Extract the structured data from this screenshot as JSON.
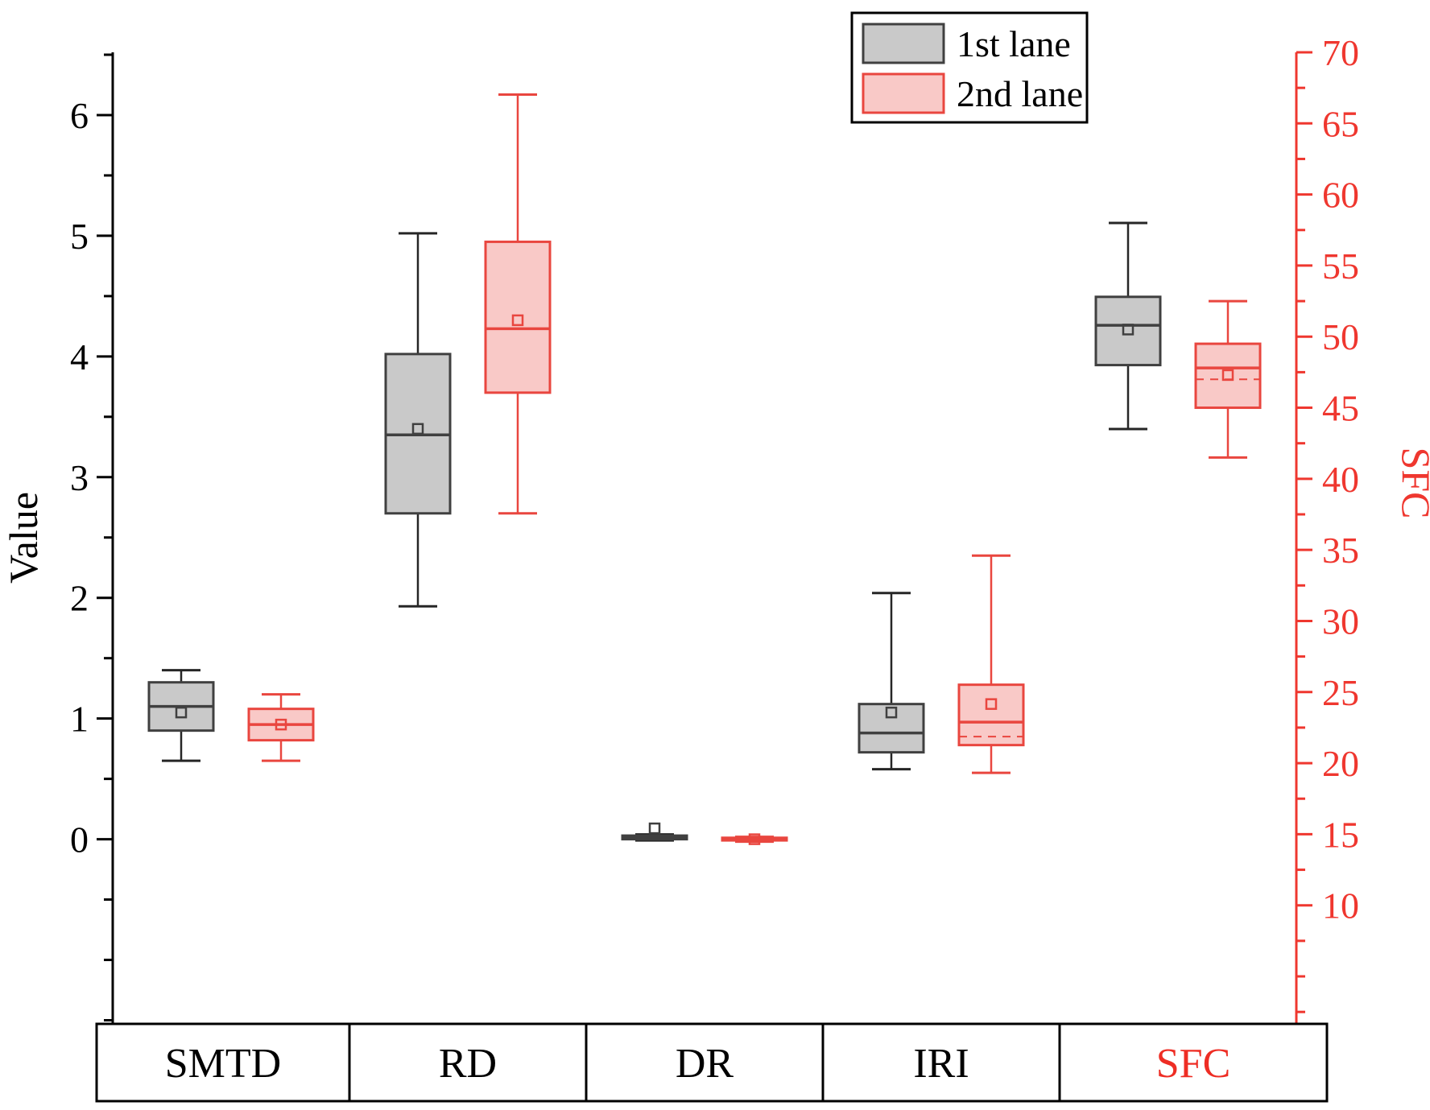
{
  "chart_data": {
    "type": "boxplot",
    "title": "",
    "categories": [
      "SMTD",
      "RD",
      "DR",
      "IRI",
      "SFC"
    ],
    "category_colors": [
      "#000000",
      "#000000",
      "#000000",
      "#000000",
      "#ee2d24"
    ],
    "left_axis": {
      "label": "Value",
      "color": "#000000",
      "ticks": [
        0,
        1,
        2,
        3,
        4,
        5,
        6
      ],
      "minor_step": 0.5,
      "range_top_value": 6.52,
      "range_bottom_value": -1.53
    },
    "right_axis": {
      "label": "SFC",
      "color": "#ef372f",
      "tick_min": 10,
      "tick_max": 70,
      "tick_step": 5,
      "minor_step": 2.5,
      "range_top_value": 70,
      "range_bottom_value": 1.66
    },
    "legend": {
      "items": [
        {
          "label": "1st lane",
          "fill": "#c9c9c9",
          "stroke": "#404040"
        },
        {
          "label": "2nd lane",
          "fill": "#f9c9c7",
          "stroke": "#e9463f"
        }
      ]
    },
    "series": [
      {
        "name": "1st lane",
        "fill": "#c9c9c9",
        "stroke": "#404040",
        "whisker": "#262626",
        "boxes": [
          {
            "category": "SMTD",
            "axis": "left",
            "min": 0.65,
            "q1": 0.9,
            "median": 1.1,
            "q3": 1.3,
            "max": 1.4,
            "mean": 1.05
          },
          {
            "category": "RD",
            "axis": "left",
            "min": 1.93,
            "q1": 2.7,
            "median": 3.35,
            "q3": 4.02,
            "max": 5.02,
            "mean": 3.4
          },
          {
            "category": "DR",
            "axis": "left",
            "min": -0.01,
            "q1": 0.0,
            "median": 0.015,
            "q3": 0.03,
            "max": 0.04,
            "mean": 0.09
          },
          {
            "category": "IRI",
            "axis": "left",
            "min": 0.58,
            "q1": 0.72,
            "median": 0.88,
            "q3": 1.12,
            "max": 2.04,
            "mean": 1.05
          },
          {
            "category": "SFC",
            "axis": "right",
            "min": 43.5,
            "q1": 48.0,
            "median": 50.8,
            "q3": 52.8,
            "max": 58.0,
            "mean": 50.5
          }
        ]
      },
      {
        "name": "2nd lane",
        "fill": "#f9c9c7",
        "stroke": "#e9463f",
        "whisker": "#e9463f",
        "boxes": [
          {
            "category": "SMTD",
            "axis": "left",
            "min": 0.65,
            "q1": 0.82,
            "median": 0.95,
            "q3": 1.08,
            "max": 1.2,
            "mean": 0.95
          },
          {
            "category": "RD",
            "axis": "left",
            "min": 2.7,
            "q1": 3.7,
            "median": 4.23,
            "q3": 4.95,
            "max": 6.17,
            "mean": 4.3
          },
          {
            "category": "DR",
            "axis": "left",
            "min": -0.02,
            "q1": -0.01,
            "median": 0.0,
            "q3": 0.012,
            "max": 0.02,
            "mean": 0.0
          },
          {
            "category": "IRI",
            "axis": "left",
            "min": 0.55,
            "q1": 0.78,
            "median": 0.97,
            "q3": 1.28,
            "max": 2.35,
            "mean": 1.12,
            "dashed": 0.85
          },
          {
            "category": "SFC",
            "axis": "right",
            "min": 41.5,
            "q1": 45.0,
            "median": 47.8,
            "q3": 49.5,
            "max": 52.5,
            "mean": 47.3,
            "dashed": 47.0
          }
        ]
      }
    ]
  }
}
